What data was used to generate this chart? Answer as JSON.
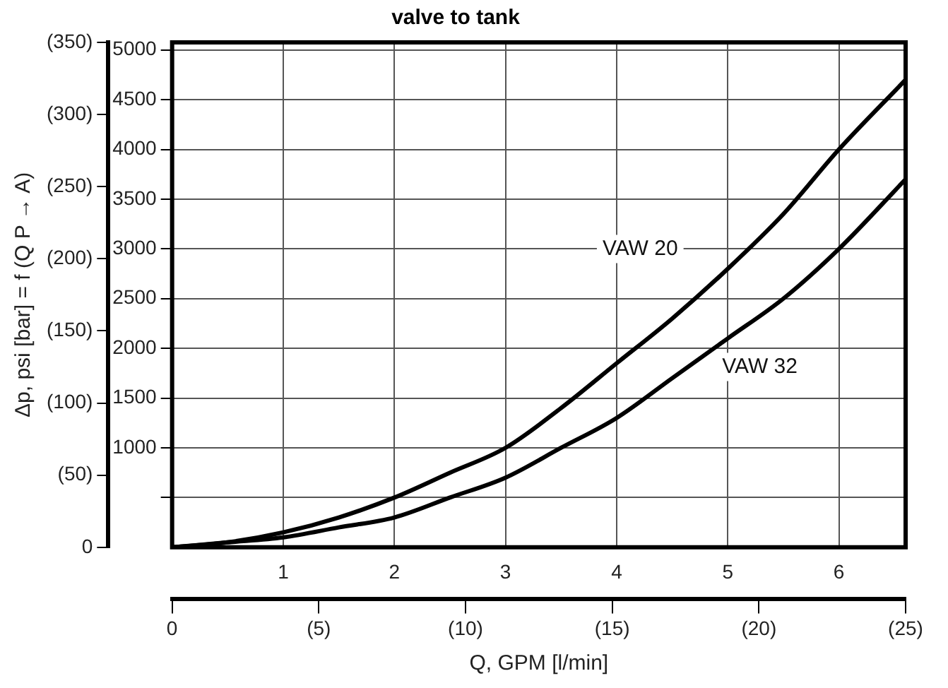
{
  "chart_data": {
    "type": "line",
    "title": "valve to tank",
    "xlabel": "Q, GPM [l/min]",
    "y2label": "Δp, psi [bar] = f (Q P → A)",
    "x": [
      0,
      0.5,
      1,
      1.5,
      2,
      2.5,
      3,
      3.5,
      4,
      4.5,
      5,
      5.5,
      6,
      6.6
    ],
    "series": [
      {
        "name": "VAW 20",
        "color": "#000000",
        "values": [
          0,
          50,
          150,
          300,
          500,
          750,
          1000,
          1400,
          1850,
          2300,
          2800,
          3350,
          4000,
          4700
        ]
      },
      {
        "name": "VAW 32",
        "color": "#000000",
        "values": [
          0,
          50,
          100,
          200,
          300,
          500,
          700,
          1000,
          1300,
          1700,
          2100,
          2500,
          3000,
          3700
        ]
      }
    ],
    "xlim": [
      0,
      6.6
    ],
    "xticks": [
      1,
      2,
      3,
      4,
      5,
      6
    ],
    "x2lim": [
      0,
      25
    ],
    "x2ticks": [
      {
        "value": 0,
        "label": "0"
      },
      {
        "value": 5,
        "label": "(5)"
      },
      {
        "value": 10,
        "label": "(10)"
      },
      {
        "value": 15,
        "label": "(15)"
      },
      {
        "value": 20,
        "label": "(20)"
      },
      {
        "value": 25,
        "label": "(25)"
      }
    ],
    "ylim": [
      0,
      5076
    ],
    "yticks": [
      {
        "value": 500,
        "label": null
      },
      1000,
      1500,
      2000,
      2500,
      3000,
      3500,
      4000,
      4500,
      5000
    ],
    "y2lim": [
      0,
      350
    ],
    "y2ticks": [
      {
        "value": 0,
        "label": "0"
      },
      {
        "value": 50,
        "label": "(50)"
      },
      {
        "value": 100,
        "label": "(100)"
      },
      {
        "value": 150,
        "label": "(150)"
      },
      {
        "value": 200,
        "label": "(200)"
      },
      {
        "value": 250,
        "label": "(250)"
      },
      {
        "value": 300,
        "label": "(300)"
      },
      {
        "value": 350,
        "label": "(350)"
      }
    ],
    "grid": true,
    "legend": false,
    "marker": "none",
    "line_style": "solid"
  }
}
